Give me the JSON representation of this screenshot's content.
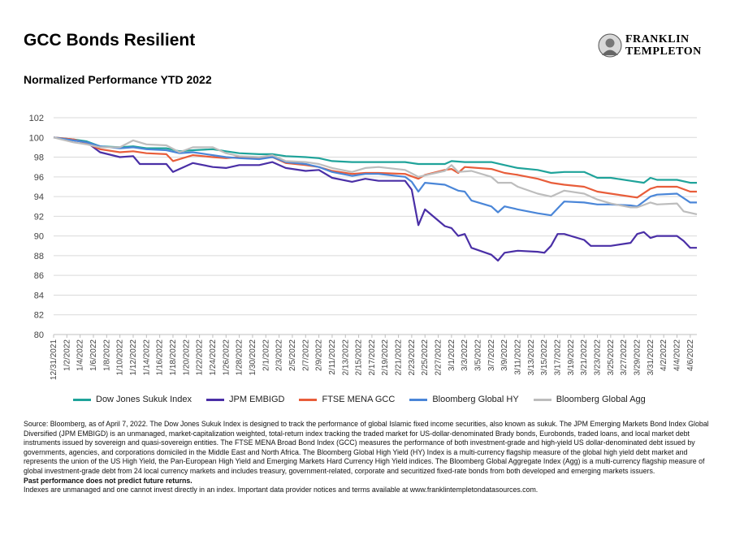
{
  "title": "GCC Bonds Resilient",
  "subtitle": "Normalized Performance YTD 2022",
  "logo": {
    "line1": "FRANKLIN",
    "line2": "TEMPLETON"
  },
  "footnote": {
    "source": "Source: Bloomberg, as of April 7, 2022. The Dow Jones Sukuk Index is designed to track the performance of global Islamic fixed income securities, also known as sukuk. The JPM Emerging Markets Bond Index Global Diversified (JPM EMBIGD) is an unmanaged, market-capitalization weighted, total-return index tracking the traded market for US-dollar-denominated Brady bonds, Eurobonds, traded loans, and local market debt instruments issued by sovereign and quasi-sovereign entities. The FTSE MENA Broad Bond Index (GCC) measures the performance of both investment-grade and high-yield US dollar-denominated debt issued by governments, agencies, and corporations domiciled in the Middle East and North Africa. The Bloomberg Global High Yield (HY) Index is a multi-currency flagship measure of the global high yield debt market and represents the union of the US High Yield, the Pan-European High Yield and Emerging Markets Hard Currency High Yield indices. The Bloomberg Global Aggregate Index (Agg) is a multi-currency flagship measure of global investment-grade debt from 24 local currency markets and includes treasury, government-related, corporate and securitized fixed-rate bonds from both developed and emerging markets issuers.",
    "past_performance": "Past performance does not predict future returns.",
    "indexes": "Indexes are unmanaged and one cannot invest directly in an index. Important data provider notices and terms available at www.franklintempletondatasources.com."
  },
  "chart_data": {
    "type": "line",
    "ylim": [
      80,
      102
    ],
    "yticks": [
      80,
      82,
      84,
      86,
      88,
      90,
      92,
      94,
      96,
      98,
      100,
      102
    ],
    "xlim": [
      "2021-12-31",
      "2022-04-07"
    ],
    "xticks": [
      "12/31/2021",
      "1/2/2022",
      "1/4/2022",
      "1/6/2022",
      "1/8/2022",
      "1/10/2022",
      "1/12/2022",
      "1/14/2022",
      "1/16/2022",
      "1/18/2022",
      "1/20/2022",
      "1/22/2022",
      "1/24/2022",
      "1/26/2022",
      "1/28/2022",
      "1/30/2022",
      "2/1/2022",
      "2/3/2022",
      "2/5/2022",
      "2/7/2022",
      "2/9/2022",
      "2/11/2022",
      "2/13/2022",
      "2/15/2022",
      "2/17/2022",
      "2/19/2022",
      "2/21/2022",
      "2/23/2022",
      "2/25/2022",
      "2/27/2022",
      "3/1/2022",
      "3/3/2022",
      "3/5/2022",
      "3/7/2022",
      "3/9/2022",
      "3/11/2022",
      "3/13/2022",
      "3/15/2022",
      "3/17/2022",
      "3/19/2022",
      "3/21/2022",
      "3/23/2022",
      "3/25/2022",
      "3/27/2022",
      "3/29/2022",
      "3/31/2022",
      "4/2/2022",
      "4/4/2022",
      "4/6/2022"
    ],
    "grid": true,
    "legend_position": "bottom",
    "series": [
      {
        "name": "Dow Jones Sukuk Index",
        "color": "#1FA39A",
        "points": [
          [
            "2021-12-31",
            100
          ],
          [
            "2022-01-03",
            99.8
          ],
          [
            "2022-01-05",
            99.6
          ],
          [
            "2022-01-07",
            99.1
          ],
          [
            "2022-01-10",
            99.0
          ],
          [
            "2022-01-12",
            99.1
          ],
          [
            "2022-01-14",
            98.9
          ],
          [
            "2022-01-17",
            98.9
          ],
          [
            "2022-01-19",
            98.6
          ],
          [
            "2022-01-21",
            98.7
          ],
          [
            "2022-01-24",
            98.8
          ],
          [
            "2022-01-26",
            98.6
          ],
          [
            "2022-01-28",
            98.4
          ],
          [
            "2022-01-31",
            98.3
          ],
          [
            "2022-02-02",
            98.3
          ],
          [
            "2022-02-04",
            98.1
          ],
          [
            "2022-02-07",
            98.0
          ],
          [
            "2022-02-09",
            97.9
          ],
          [
            "2022-02-11",
            97.6
          ],
          [
            "2022-02-14",
            97.5
          ],
          [
            "2022-02-16",
            97.5
          ],
          [
            "2022-02-18",
            97.5
          ],
          [
            "2022-02-22",
            97.5
          ],
          [
            "2022-02-24",
            97.3
          ],
          [
            "2022-02-28",
            97.3
          ],
          [
            "2022-03-01",
            97.6
          ],
          [
            "2022-03-03",
            97.5
          ],
          [
            "2022-03-07",
            97.5
          ],
          [
            "2022-03-09",
            97.2
          ],
          [
            "2022-03-11",
            96.9
          ],
          [
            "2022-03-14",
            96.7
          ],
          [
            "2022-03-16",
            96.4
          ],
          [
            "2022-03-18",
            96.5
          ],
          [
            "2022-03-21",
            96.5
          ],
          [
            "2022-03-23",
            95.9
          ],
          [
            "2022-03-25",
            95.9
          ],
          [
            "2022-03-28",
            95.6
          ],
          [
            "2022-03-30",
            95.4
          ],
          [
            "2022-03-31",
            95.9
          ],
          [
            "2022-04-01",
            95.7
          ],
          [
            "2022-04-04",
            95.7
          ],
          [
            "2022-04-06",
            95.4
          ],
          [
            "2022-04-07",
            95.4
          ]
        ]
      },
      {
        "name": "JPM EMBIGD",
        "color": "#4A2FA6",
        "points": [
          [
            "2021-12-31",
            100
          ],
          [
            "2022-01-03",
            99.7
          ],
          [
            "2022-01-05",
            99.5
          ],
          [
            "2022-01-07",
            98.5
          ],
          [
            "2022-01-10",
            98.0
          ],
          [
            "2022-01-12",
            98.1
          ],
          [
            "2022-01-13",
            97.3
          ],
          [
            "2022-01-17",
            97.3
          ],
          [
            "2022-01-18",
            96.5
          ],
          [
            "2022-01-21",
            97.4
          ],
          [
            "2022-01-24",
            97.0
          ],
          [
            "2022-01-26",
            96.9
          ],
          [
            "2022-01-28",
            97.2
          ],
          [
            "2022-01-31",
            97.2
          ],
          [
            "2022-02-02",
            97.5
          ],
          [
            "2022-02-04",
            96.9
          ],
          [
            "2022-02-07",
            96.6
          ],
          [
            "2022-02-09",
            96.7
          ],
          [
            "2022-02-11",
            95.9
          ],
          [
            "2022-02-14",
            95.5
          ],
          [
            "2022-02-16",
            95.8
          ],
          [
            "2022-02-18",
            95.6
          ],
          [
            "2022-02-22",
            95.6
          ],
          [
            "2022-02-23",
            94.7
          ],
          [
            "2022-02-24",
            91.1
          ],
          [
            "2022-02-25",
            92.7
          ],
          [
            "2022-02-28",
            91.0
          ],
          [
            "2022-03-01",
            90.8
          ],
          [
            "2022-03-02",
            90.0
          ],
          [
            "2022-03-03",
            90.2
          ],
          [
            "2022-03-04",
            88.8
          ],
          [
            "2022-03-07",
            88.1
          ],
          [
            "2022-03-08",
            87.5
          ],
          [
            "2022-03-09",
            88.3
          ],
          [
            "2022-03-11",
            88.5
          ],
          [
            "2022-03-14",
            88.4
          ],
          [
            "2022-03-15",
            88.3
          ],
          [
            "2022-03-16",
            89.0
          ],
          [
            "2022-03-17",
            90.2
          ],
          [
            "2022-03-18",
            90.2
          ],
          [
            "2022-03-21",
            89.6
          ],
          [
            "2022-03-22",
            89.0
          ],
          [
            "2022-03-25",
            89.0
          ],
          [
            "2022-03-28",
            89.3
          ],
          [
            "2022-03-29",
            90.2
          ],
          [
            "2022-03-30",
            90.4
          ],
          [
            "2022-03-31",
            89.8
          ],
          [
            "2022-04-01",
            90.0
          ],
          [
            "2022-04-04",
            90.0
          ],
          [
            "2022-04-05",
            89.5
          ],
          [
            "2022-04-06",
            88.8
          ],
          [
            "2022-04-07",
            88.8
          ]
        ]
      },
      {
        "name": "FTSE MENA GCC",
        "color": "#E85D3A",
        "points": [
          [
            "2021-12-31",
            100
          ],
          [
            "2022-01-03",
            99.8
          ],
          [
            "2022-01-05",
            99.4
          ],
          [
            "2022-01-07",
            98.8
          ],
          [
            "2022-01-10",
            98.5
          ],
          [
            "2022-01-12",
            98.6
          ],
          [
            "2022-01-14",
            98.4
          ],
          [
            "2022-01-17",
            98.3
          ],
          [
            "2022-01-18",
            97.6
          ],
          [
            "2022-01-21",
            98.2
          ],
          [
            "2022-01-24",
            98.0
          ],
          [
            "2022-01-26",
            97.9
          ],
          [
            "2022-01-28",
            98.0
          ],
          [
            "2022-01-31",
            97.9
          ],
          [
            "2022-02-02",
            98.0
          ],
          [
            "2022-02-04",
            97.4
          ],
          [
            "2022-02-07",
            97.2
          ],
          [
            "2022-02-09",
            97.0
          ],
          [
            "2022-02-11",
            96.6
          ],
          [
            "2022-02-14",
            96.3
          ],
          [
            "2022-02-16",
            96.4
          ],
          [
            "2022-02-18",
            96.4
          ],
          [
            "2022-02-22",
            96.3
          ],
          [
            "2022-02-24",
            95.8
          ],
          [
            "2022-02-25",
            96.2
          ],
          [
            "2022-02-28",
            96.7
          ],
          [
            "2022-03-01",
            96.8
          ],
          [
            "2022-03-02",
            96.4
          ],
          [
            "2022-03-03",
            97.0
          ],
          [
            "2022-03-07",
            96.8
          ],
          [
            "2022-03-09",
            96.4
          ],
          [
            "2022-03-11",
            96.2
          ],
          [
            "2022-03-14",
            95.8
          ],
          [
            "2022-03-16",
            95.4
          ],
          [
            "2022-03-18",
            95.2
          ],
          [
            "2022-03-21",
            95.0
          ],
          [
            "2022-03-23",
            94.5
          ],
          [
            "2022-03-25",
            94.3
          ],
          [
            "2022-03-28",
            94.0
          ],
          [
            "2022-03-29",
            93.9
          ],
          [
            "2022-03-31",
            94.8
          ],
          [
            "2022-04-01",
            95.0
          ],
          [
            "2022-04-04",
            95.0
          ],
          [
            "2022-04-06",
            94.5
          ],
          [
            "2022-04-07",
            94.5
          ]
        ]
      },
      {
        "name": "Bloomberg Global HY",
        "color": "#4A86D8",
        "points": [
          [
            "2021-12-31",
            100
          ],
          [
            "2022-01-03",
            99.7
          ],
          [
            "2022-01-05",
            99.5
          ],
          [
            "2022-01-07",
            99.1
          ],
          [
            "2022-01-10",
            98.9
          ],
          [
            "2022-01-12",
            99.0
          ],
          [
            "2022-01-14",
            98.8
          ],
          [
            "2022-01-17",
            98.7
          ],
          [
            "2022-01-19",
            98.4
          ],
          [
            "2022-01-21",
            98.5
          ],
          [
            "2022-01-24",
            98.2
          ],
          [
            "2022-01-26",
            98.0
          ],
          [
            "2022-01-28",
            97.9
          ],
          [
            "2022-01-31",
            97.8
          ],
          [
            "2022-02-02",
            98.0
          ],
          [
            "2022-02-04",
            97.5
          ],
          [
            "2022-02-07",
            97.3
          ],
          [
            "2022-02-09",
            97.0
          ],
          [
            "2022-02-11",
            96.5
          ],
          [
            "2022-02-14",
            96.1
          ],
          [
            "2022-02-16",
            96.3
          ],
          [
            "2022-02-18",
            96.3
          ],
          [
            "2022-02-22",
            96.0
          ],
          [
            "2022-02-23",
            95.5
          ],
          [
            "2022-02-24",
            94.5
          ],
          [
            "2022-02-25",
            95.4
          ],
          [
            "2022-02-28",
            95.2
          ],
          [
            "2022-03-02",
            94.6
          ],
          [
            "2022-03-03",
            94.5
          ],
          [
            "2022-03-04",
            93.6
          ],
          [
            "2022-03-07",
            93.0
          ],
          [
            "2022-03-08",
            92.4
          ],
          [
            "2022-03-09",
            93.0
          ],
          [
            "2022-03-11",
            92.7
          ],
          [
            "2022-03-14",
            92.3
          ],
          [
            "2022-03-16",
            92.1
          ],
          [
            "2022-03-17",
            92.8
          ],
          [
            "2022-03-18",
            93.5
          ],
          [
            "2022-03-21",
            93.4
          ],
          [
            "2022-03-23",
            93.2
          ],
          [
            "2022-03-25",
            93.2
          ],
          [
            "2022-03-28",
            93.1
          ],
          [
            "2022-03-29",
            93.0
          ],
          [
            "2022-03-31",
            94.0
          ],
          [
            "2022-04-01",
            94.2
          ],
          [
            "2022-04-04",
            94.3
          ],
          [
            "2022-04-06",
            93.4
          ],
          [
            "2022-04-07",
            93.4
          ]
        ]
      },
      {
        "name": "Bloomberg Global Agg",
        "color": "#BDBDBD",
        "points": [
          [
            "2021-12-31",
            100
          ],
          [
            "2022-01-03",
            99.5
          ],
          [
            "2022-01-05",
            99.3
          ],
          [
            "2022-01-07",
            99.0
          ],
          [
            "2022-01-10",
            99.0
          ],
          [
            "2022-01-12",
            99.7
          ],
          [
            "2022-01-14",
            99.3
          ],
          [
            "2022-01-17",
            99.2
          ],
          [
            "2022-01-19",
            98.5
          ],
          [
            "2022-01-21",
            99.0
          ],
          [
            "2022-01-24",
            99.0
          ],
          [
            "2022-01-26",
            98.4
          ],
          [
            "2022-01-28",
            98.1
          ],
          [
            "2022-01-31",
            98.0
          ],
          [
            "2022-02-02",
            98.2
          ],
          [
            "2022-02-04",
            97.6
          ],
          [
            "2022-02-07",
            97.5
          ],
          [
            "2022-02-09",
            97.3
          ],
          [
            "2022-02-11",
            96.9
          ],
          [
            "2022-02-14",
            96.5
          ],
          [
            "2022-02-16",
            96.9
          ],
          [
            "2022-02-18",
            97.0
          ],
          [
            "2022-02-22",
            96.7
          ],
          [
            "2022-02-24",
            96.0
          ],
          [
            "2022-02-28",
            96.6
          ],
          [
            "2022-03-01",
            97.2
          ],
          [
            "2022-03-02",
            96.5
          ],
          [
            "2022-03-04",
            96.6
          ],
          [
            "2022-03-07",
            96.0
          ],
          [
            "2022-03-08",
            95.4
          ],
          [
            "2022-03-10",
            95.4
          ],
          [
            "2022-03-11",
            95.0
          ],
          [
            "2022-03-14",
            94.3
          ],
          [
            "2022-03-16",
            94.0
          ],
          [
            "2022-03-18",
            94.6
          ],
          [
            "2022-03-21",
            94.3
          ],
          [
            "2022-03-23",
            93.7
          ],
          [
            "2022-03-25",
            93.3
          ],
          [
            "2022-03-28",
            92.9
          ],
          [
            "2022-03-29",
            92.9
          ],
          [
            "2022-03-31",
            93.4
          ],
          [
            "2022-04-01",
            93.2
          ],
          [
            "2022-04-04",
            93.3
          ],
          [
            "2022-04-05",
            92.5
          ],
          [
            "2022-04-07",
            92.2
          ]
        ]
      }
    ]
  }
}
